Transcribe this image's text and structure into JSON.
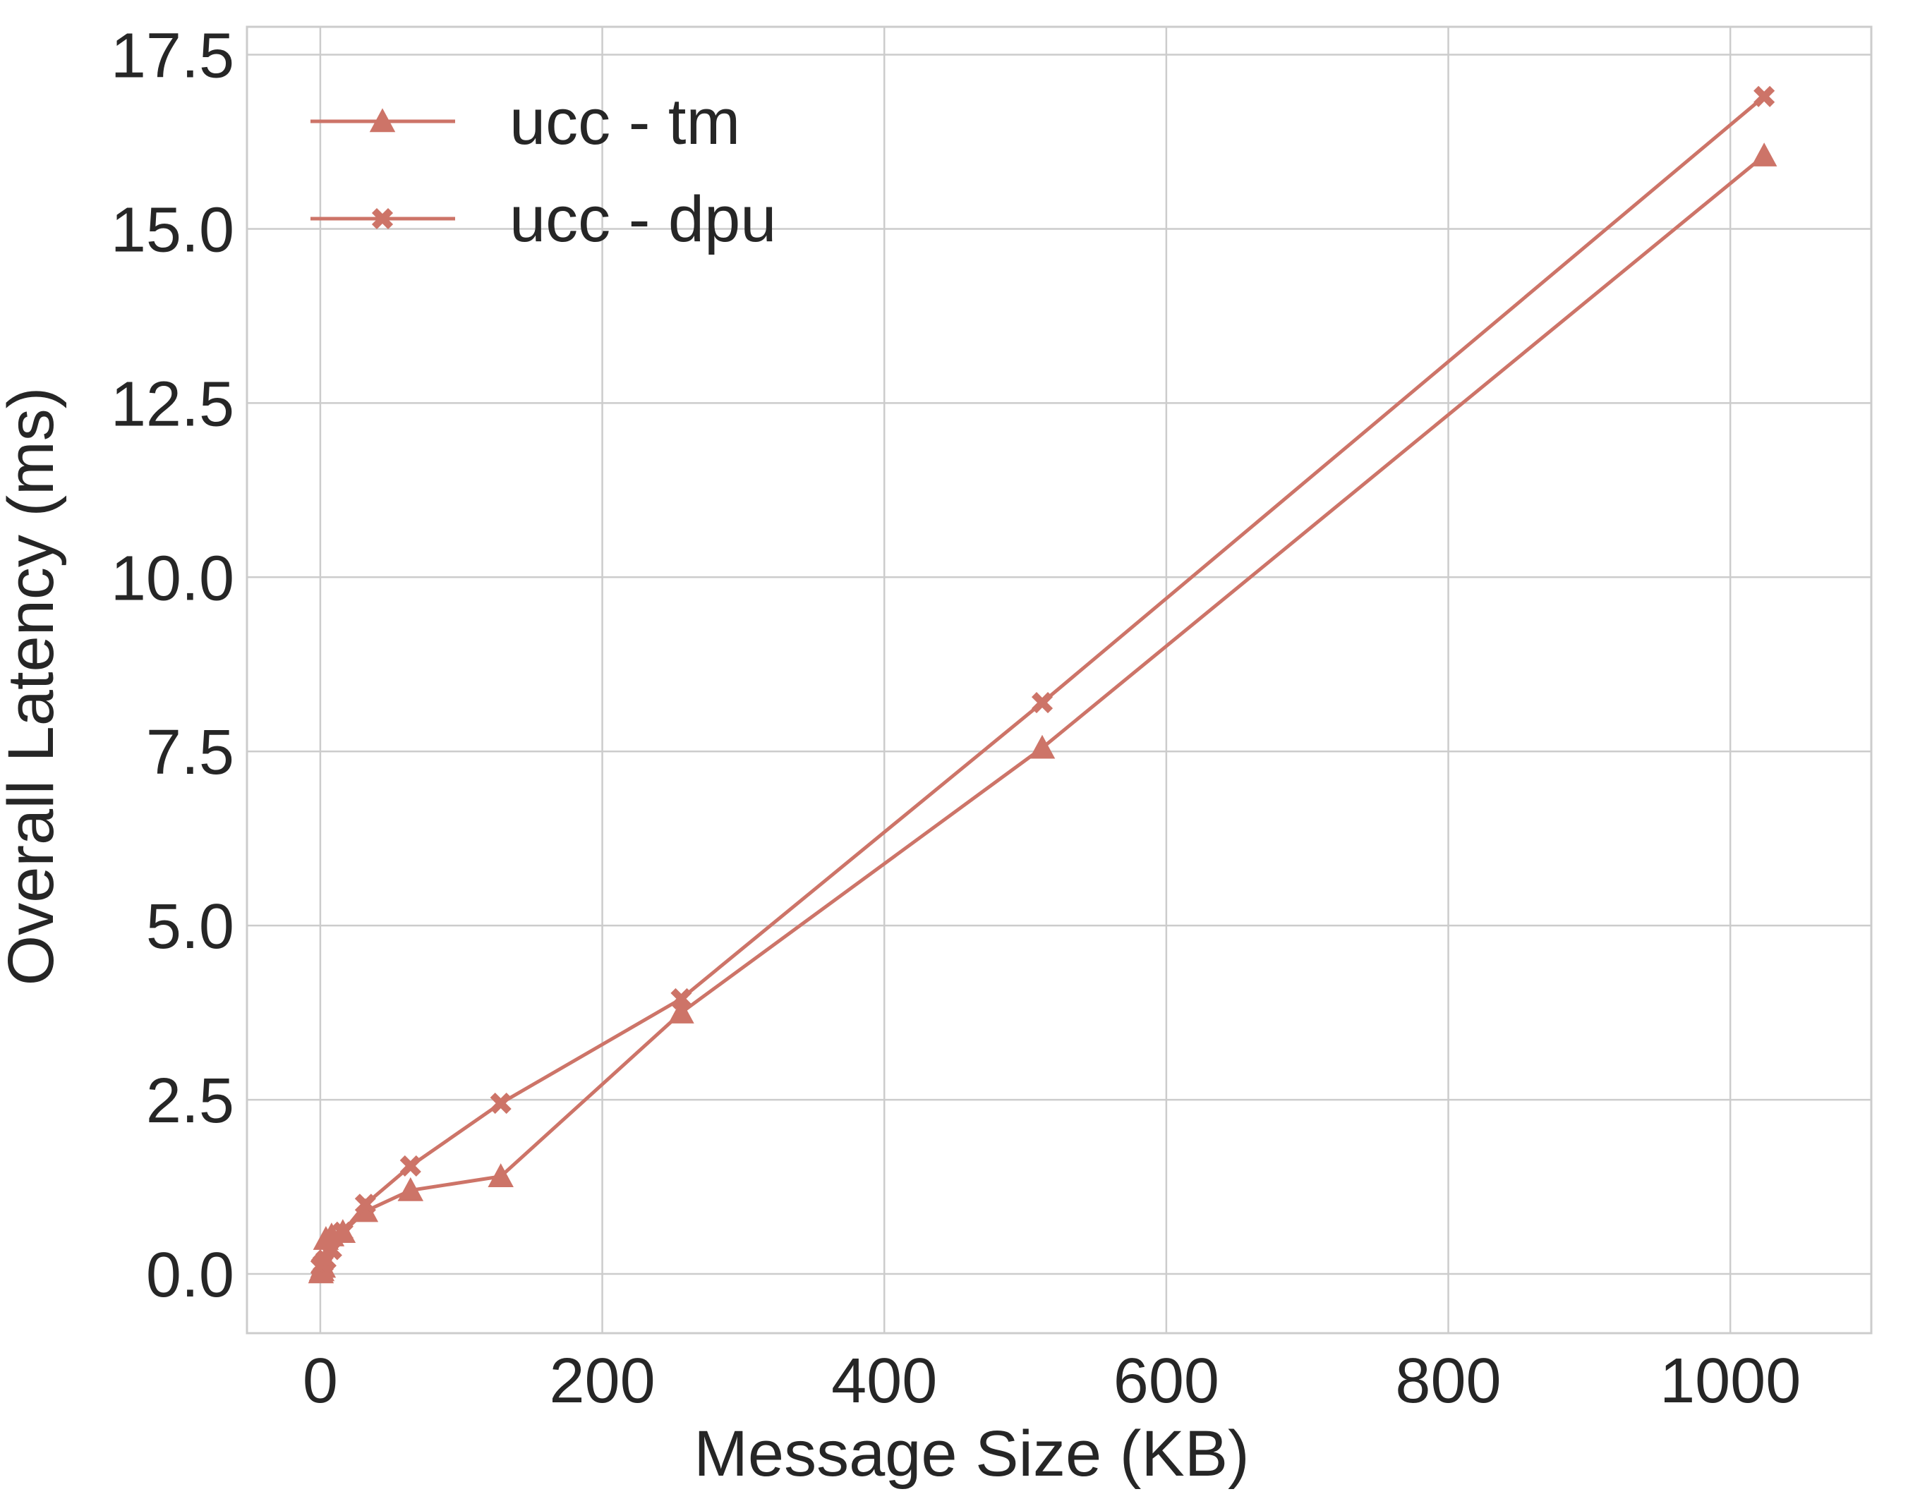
{
  "chart_data": {
    "type": "line",
    "title": "",
    "xlabel": "Message Size (KB)",
    "ylabel": "Overall Latency (ms)",
    "xlim": [
      -52,
      1100
    ],
    "ylim": [
      -0.85,
      17.9
    ],
    "xticks": [
      0,
      200,
      400,
      600,
      800,
      1000
    ],
    "yticks": [
      0.0,
      2.5,
      5.0,
      7.5,
      10.0,
      12.5,
      15.0,
      17.5
    ],
    "xtick_labels": [
      "0",
      "200",
      "400",
      "600",
      "800",
      "1000"
    ],
    "ytick_labels": [
      "0.0",
      "2.5",
      "5.0",
      "7.5",
      "10.0",
      "12.5",
      "15.0",
      "17.5"
    ],
    "grid": true,
    "legend_position": "top-left",
    "line_color": "#cd7468",
    "series": [
      {
        "name": "ucc - tm",
        "marker": "triangle",
        "x": [
          0.5,
          1,
          2,
          4,
          8,
          16,
          32,
          64,
          128,
          256,
          512,
          1024
        ],
        "y": [
          0.02,
          0.05,
          0.1,
          0.5,
          0.55,
          0.6,
          0.9,
          1.2,
          1.4,
          3.75,
          7.55,
          16.05
        ]
      },
      {
        "name": "ucc - dpu",
        "marker": "x",
        "x": [
          0.5,
          1,
          2,
          4,
          8,
          16,
          32,
          64,
          128,
          256,
          512,
          1024
        ],
        "y": [
          0.1,
          0.12,
          0.15,
          0.2,
          0.35,
          0.6,
          1.0,
          1.55,
          2.45,
          3.95,
          8.2,
          16.9
        ]
      }
    ]
  }
}
